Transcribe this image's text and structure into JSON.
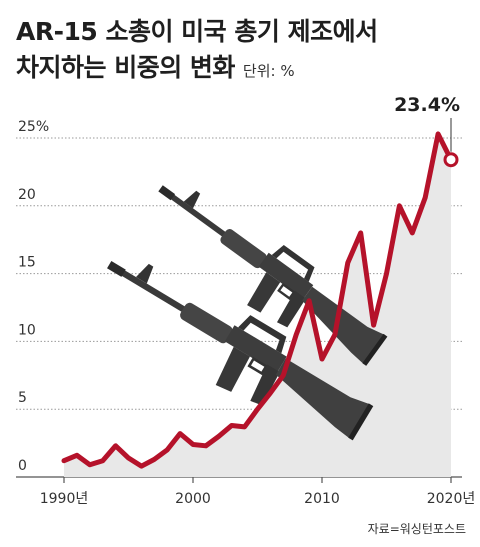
{
  "title_line1": "AR-15 소총이 미국 총기 제조에서",
  "title_line2": "차지하는 비중의 변화",
  "unit_label": "단위: %",
  "source": "자료=워싱턴포스트",
  "icon": "rifle-icon",
  "colors": {
    "line": "#b5122a",
    "area": "#e8e8e8",
    "grid": "#9a9a9a",
    "rifle": "#3a3a3a"
  },
  "chart_data": {
    "type": "area",
    "x": [
      1990,
      1991,
      1992,
      1993,
      1994,
      1995,
      1996,
      1997,
      1998,
      1999,
      2000,
      2001,
      2002,
      2003,
      2004,
      2005,
      2006,
      2007,
      2008,
      2009,
      2010,
      2011,
      2012,
      2013,
      2014,
      2015,
      2016,
      2017,
      2018,
      2019,
      2020
    ],
    "values": [
      1.2,
      1.6,
      0.9,
      1.2,
      2.3,
      1.4,
      0.8,
      1.3,
      2.0,
      3.2,
      2.4,
      2.3,
      3.0,
      3.8,
      3.7,
      5.0,
      6.2,
      7.5,
      10.5,
      13.0,
      8.7,
      10.5,
      15.8,
      18.0,
      11.2,
      15.0,
      20.0,
      18.0,
      20.6,
      25.3,
      23.4
    ],
    "xticks": [
      1990,
      2000,
      2010,
      2020
    ],
    "xtick_labels": [
      "1990년",
      "2000",
      "2010",
      "2020년"
    ],
    "yticks": [
      0,
      5,
      10,
      15,
      20,
      25
    ],
    "ytick_labels": [
      "0",
      "5",
      "10",
      "15",
      "20",
      "25%"
    ],
    "ylim": [
      0,
      25
    ],
    "xlim": [
      1990,
      2020
    ],
    "annotation": {
      "x": 2020,
      "value": 23.4,
      "label": "23.4%"
    },
    "grid": true
  }
}
